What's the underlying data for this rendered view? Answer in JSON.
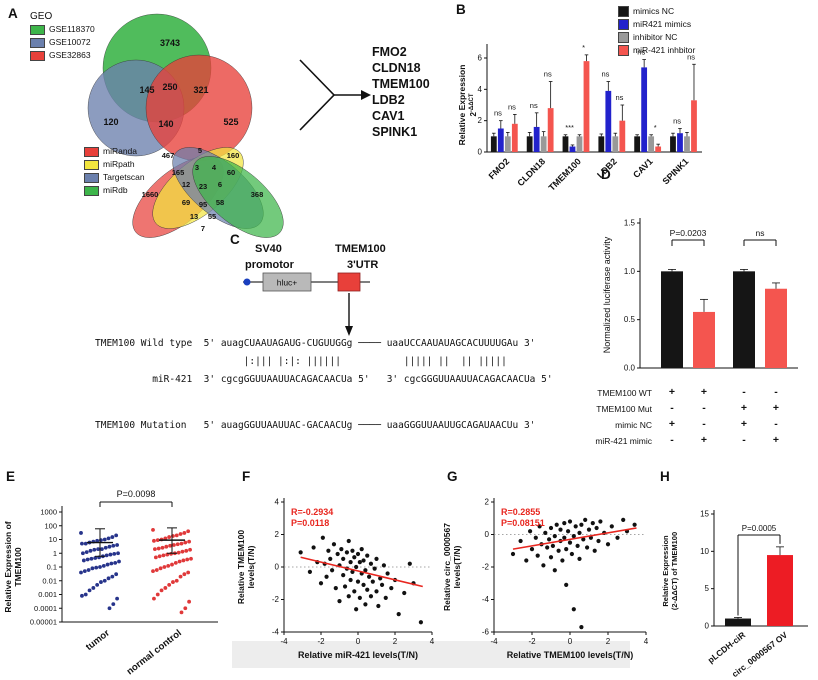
{
  "panels": {
    "A": {
      "label": "A",
      "geo": {
        "title": "GEO",
        "legend": [
          {
            "label": "GSE118370",
            "color": "#3db54a"
          },
          {
            "label": "GSE10072",
            "color": "#6b80ad"
          },
          {
            "label": "GSE32863",
            "color": "#e8403a"
          }
        ]
      },
      "venn3_counts": [
        "3743",
        "145",
        "250",
        "321",
        "120",
        "140",
        "525"
      ],
      "mirna_legend": [
        {
          "label": "miRanda",
          "color": "#e8403a"
        },
        {
          "label": "miRpath",
          "color": "#f2e53e"
        },
        {
          "label": "Targetscan",
          "color": "#6b80ad"
        },
        {
          "label": "miRdb",
          "color": "#3db54a"
        }
      ],
      "venn4_counts": [
        "467",
        "5",
        "160",
        "1660",
        "165",
        "3",
        "4",
        "60",
        "368",
        "12",
        "23",
        "6",
        "69",
        "95",
        "58",
        "13",
        "55",
        "7"
      ],
      "genes": [
        "FMO2",
        "CLDN18",
        "TMEM100",
        "LDB2",
        "CAV1",
        "SPINK1"
      ]
    },
    "B": {
      "label": "B"
    },
    "C": {
      "label": "C",
      "construct": {
        "promoter_top": "SV40",
        "promoter_bottom": "promotor",
        "utr_top": "TMEM100",
        "utr_bottom": "3'UTR",
        "reporter": "hluc+"
      },
      "sequence_lines": [
        "TMEM100 Wild type  5' auagCUAAUAGAUG-CUGUUGGg ──── uaaUCCAAUAUAGCACUUUUGAu 3'",
        "                          |:||| |:|: ||||||           ||||| ||  || |||||",
        "          miR-421  3' cgcgGGUUAAUUACAGACAACUa 5'   3' cgcGGGUUAAUUACAGACAACUa 5'",
        "TMEM100 Mutation   5' auagGGUUAAUUAC-GACAACUg ──── uaaGGGUUAAUUGCAGAUAACUu 3'"
      ]
    },
    "D": {
      "label": "D"
    },
    "E": {
      "label": "E"
    },
    "F": {
      "label": "F"
    },
    "G": {
      "label": "G"
    },
    "H": {
      "label": "H"
    }
  },
  "chart_data": [
    {
      "panel": "B",
      "type": "bar",
      "categories": [
        "FMO2",
        "CLDN18",
        "TMEM100",
        "LDB2",
        "CAV1",
        "SPINK1"
      ],
      "series": [
        {
          "name": "mimics NC",
          "color": "#151515",
          "values": [
            1.0,
            1.0,
            1.0,
            1.0,
            1.0,
            1.0
          ],
          "errors": [
            0.2,
            0.25,
            0.1,
            0.15,
            0.1,
            0.2
          ]
        },
        {
          "name": "miR421 mimics",
          "color": "#2222cc",
          "values": [
            1.5,
            1.6,
            0.35,
            3.9,
            5.4,
            1.2
          ],
          "errors": [
            0.5,
            0.9,
            0.1,
            0.6,
            0.5,
            0.3
          ]
        },
        {
          "name": "inhibitor NC",
          "color": "#999999",
          "values": [
            1.0,
            1.0,
            1.0,
            1.0,
            1.0,
            1.0
          ],
          "errors": [
            0.25,
            0.3,
            0.1,
            0.2,
            0.1,
            0.25
          ]
        },
        {
          "name": "miR-421 inhbitor",
          "color": "#f4554f",
          "values": [
            1.8,
            2.8,
            5.8,
            2.0,
            0.35,
            3.3
          ],
          "errors": [
            0.6,
            1.7,
            0.4,
            1.0,
            0.15,
            2.3
          ]
        }
      ],
      "ylabel_line1": "Relative Expression",
      "ylabel_line2": "2-ΔΔCT",
      "ylim": [
        0,
        6
      ],
      "yticks": [
        0,
        2,
        4,
        6
      ],
      "sig": [
        {
          "cat": "FMO2",
          "labels": [
            "ns",
            "ns"
          ]
        },
        {
          "cat": "CLDN18",
          "labels": [
            "ns",
            "ns"
          ]
        },
        {
          "cat": "TMEM100",
          "labels": [
            "***",
            "*"
          ]
        },
        {
          "cat": "LDB2",
          "labels": [
            "ns",
            "ns"
          ]
        },
        {
          "cat": "CAV1",
          "labels": [
            "ns",
            "*"
          ]
        },
        {
          "cat": "SPINK1",
          "labels": [
            "ns",
            "ns"
          ]
        }
      ]
    },
    {
      "panel": "D",
      "type": "bar",
      "ylabel": "Normalized luciferase activity",
      "ylim": [
        0,
        1.5
      ],
      "yticks": [
        "0.0",
        "0.5",
        "1.0",
        "1.5"
      ],
      "values": [
        1.0,
        0.58,
        1.0,
        0.82
      ],
      "errors": [
        0.02,
        0.13,
        0.02,
        0.06
      ],
      "colors": [
        "#151515",
        "#f4554f",
        "#151515",
        "#f4554f"
      ],
      "comparisons": [
        {
          "a": 0,
          "b": 1,
          "label": "P=0.0203"
        },
        {
          "a": 2,
          "b": 3,
          "label": "ns"
        }
      ],
      "table_rows": [
        {
          "label": "TMEM100  WT",
          "cells": [
            "+",
            "+",
            "-",
            "-"
          ]
        },
        {
          "label": "TMEM100 Mut",
          "cells": [
            "-",
            "-",
            "+",
            "+"
          ]
        },
        {
          "label": "mimic NC",
          "cells": [
            "+",
            "-",
            "+",
            "-"
          ]
        },
        {
          "label": "miR-421 mimic",
          "cells": [
            "-",
            "+",
            "-",
            "+"
          ]
        }
      ]
    },
    {
      "panel": "E",
      "type": "scatter-column",
      "pvalue": "P=0.0098",
      "ylabel_line1": "Relative Expression of",
      "ylabel_line2": "TMEM100",
      "yticks": [
        "1000",
        "100",
        "10",
        "1",
        "0.1",
        "0.01",
        "0.001",
        "0.0001",
        "0.00001"
      ],
      "groups": [
        {
          "name": "tumor",
          "color": "#27348b",
          "mean": 6,
          "sd_hi": 60,
          "sd_lo": 0.6,
          "values": [
            30,
            20,
            15,
            12,
            10,
            9,
            8,
            7,
            6,
            5,
            5,
            4,
            3.5,
            3,
            2.5,
            2,
            2,
            1.8,
            1.5,
            1.2,
            1,
            1,
            0.9,
            0.8,
            0.7,
            0.6,
            0.5,
            0.45,
            0.4,
            0.35,
            0.3,
            0.25,
            0.2,
            0.18,
            0.15,
            0.12,
            0.1,
            0.09,
            0.08,
            0.06,
            0.05,
            0.04,
            0.03,
            0.02,
            0.015,
            0.01,
            0.008,
            0.005,
            0.003,
            0.002,
            0.001,
            0.0008,
            0.0005,
            0.0002,
            0.0001
          ]
        },
        {
          "name": "normal control",
          "color": "#e0393a",
          "mean": 9,
          "sd_hi": 70,
          "sd_lo": 1,
          "values": [
            50,
            40,
            30,
            25,
            20,
            18,
            15,
            12,
            10,
            9,
            8,
            7,
            6,
            5,
            4.5,
            4,
            3.5,
            3,
            2.5,
            2.2,
            2,
            1.8,
            1.5,
            1.3,
            1.1,
            1,
            0.9,
            0.8,
            0.7,
            0.6,
            0.5,
            0.4,
            0.35,
            0.3,
            0.25,
            0.2,
            0.15,
            0.12,
            0.1,
            0.08,
            0.06,
            0.05,
            0.04,
            0.03,
            0.02,
            0.01,
            0.008,
            0.005,
            0.003,
            0.002,
            0.001,
            0.0005,
            0.0003,
            0.0001,
            5e-05
          ]
        }
      ]
    },
    {
      "panel": "F",
      "type": "scatter",
      "r_label": "R=-0.2934",
      "p_label": "P=0.0118",
      "xlabel": "Relative miR-421 levels(T/N)",
      "ylabel_line1": "Relative TMEM100",
      "ylabel_line2": "levels(T/N)",
      "xlim": [
        -4,
        4
      ],
      "ylim": [
        -4,
        4
      ],
      "xticks": [
        -4,
        -2,
        0,
        2,
        4
      ],
      "yticks": [
        4,
        2,
        0,
        -2,
        -4
      ],
      "trend": {
        "x1": -3.1,
        "y1": 0.6,
        "x2": 3.5,
        "y2": -1.2
      },
      "points": [
        [
          -3.1,
          0.9
        ],
        [
          -2.6,
          -0.3
        ],
        [
          -2.4,
          1.2
        ],
        [
          -2.2,
          0.3
        ],
        [
          -2.0,
          -1.0
        ],
        [
          -1.9,
          1.8
        ],
        [
          -1.8,
          0.2
        ],
        [
          -1.7,
          -0.6
        ],
        [
          -1.6,
          1.0
        ],
        [
          -1.5,
          0.5
        ],
        [
          -1.4,
          -0.2
        ],
        [
          -1.3,
          1.4
        ],
        [
          -1.2,
          -1.3
        ],
        [
          -1.1,
          0.8
        ],
        [
          -1.0,
          0.1
        ],
        [
          -1.0,
          -2.1
        ],
        [
          -0.9,
          1.1
        ],
        [
          -0.8,
          -0.5
        ],
        [
          -0.8,
          0.5
        ],
        [
          -0.7,
          -1.2
        ],
        [
          -0.6,
          0.9
        ],
        [
          -0.6,
          -0.1
        ],
        [
          -0.5,
          1.6
        ],
        [
          -0.5,
          -1.8
        ],
        [
          -0.4,
          0.3
        ],
        [
          -0.4,
          -0.8
        ],
        [
          -0.3,
          1.0
        ],
        [
          -0.3,
          -0.3
        ],
        [
          -0.2,
          0.6
        ],
        [
          -0.2,
          -1.5
        ],
        [
          -0.1,
          0.0
        ],
        [
          -0.1,
          -2.6
        ],
        [
          0.0,
          0.8
        ],
        [
          0.0,
          -0.9
        ],
        [
          0.1,
          0.3
        ],
        [
          0.1,
          -1.9
        ],
        [
          0.2,
          -0.4
        ],
        [
          0.2,
          1.1
        ],
        [
          0.3,
          -1.1
        ],
        [
          0.3,
          0.4
        ],
        [
          0.4,
          -0.2
        ],
        [
          0.4,
          -2.3
        ],
        [
          0.5,
          0.7
        ],
        [
          0.5,
          -1.4
        ],
        [
          0.6,
          -0.6
        ],
        [
          0.7,
          0.2
        ],
        [
          0.7,
          -1.8
        ],
        [
          0.8,
          -0.9
        ],
        [
          0.9,
          -0.1
        ],
        [
          1.0,
          -1.5
        ],
        [
          1.0,
          0.5
        ],
        [
          1.1,
          -2.4
        ],
        [
          1.2,
          -0.7
        ],
        [
          1.3,
          -1.1
        ],
        [
          1.4,
          0.1
        ],
        [
          1.5,
          -1.9
        ],
        [
          1.6,
          -0.4
        ],
        [
          1.8,
          -1.3
        ],
        [
          2.0,
          -0.8
        ],
        [
          2.2,
          -2.9
        ],
        [
          2.5,
          -1.6
        ],
        [
          2.8,
          0.2
        ],
        [
          3.0,
          -1.0
        ],
        [
          3.4,
          -3.4
        ]
      ]
    },
    {
      "panel": "G",
      "type": "scatter",
      "r_label": "R=0.2855",
      "p_label": "P=0.08151",
      "xlabel": "Relative TMEM100 levels(T/N)",
      "ylabel_line1": "Relative circ_0000567",
      "ylabel_line2": "levels(T/N)",
      "xlim": [
        -4,
        4
      ],
      "ylim": [
        -6,
        2
      ],
      "xticks": [
        -4,
        -2,
        0,
        2,
        4
      ],
      "yticks": [
        2,
        0,
        -2,
        -4,
        -6
      ],
      "trend": {
        "x1": -3.0,
        "y1": -0.9,
        "x2": 3.5,
        "y2": 0.4
      },
      "points": [
        [
          -3.0,
          -1.2
        ],
        [
          -2.6,
          -0.4
        ],
        [
          -2.3,
          -1.6
        ],
        [
          -2.1,
          0.2
        ],
        [
          -2.0,
          -0.9
        ],
        [
          -1.8,
          -0.2
        ],
        [
          -1.7,
          -1.3
        ],
        [
          -1.6,
          0.5
        ],
        [
          -1.5,
          -0.6
        ],
        [
          -1.4,
          -1.9
        ],
        [
          -1.3,
          0.1
        ],
        [
          -1.2,
          -0.8
        ],
        [
          -1.1,
          -0.3
        ],
        [
          -1.0,
          -1.4
        ],
        [
          -1.0,
          0.4
        ],
        [
          -0.9,
          -0.7
        ],
        [
          -0.8,
          -0.1
        ],
        [
          -0.8,
          -2.2
        ],
        [
          -0.7,
          0.6
        ],
        [
          -0.6,
          -1.0
        ],
        [
          -0.5,
          -0.4
        ],
        [
          -0.5,
          0.3
        ],
        [
          -0.4,
          -1.6
        ],
        [
          -0.3,
          -0.2
        ],
        [
          -0.3,
          0.7
        ],
        [
          -0.2,
          -0.9
        ],
        [
          -0.2,
          -3.1
        ],
        [
          -0.1,
          0.2
        ],
        [
          0.0,
          -0.5
        ],
        [
          0.0,
          0.8
        ],
        [
          0.1,
          -1.2
        ],
        [
          0.2,
          -0.1
        ],
        [
          0.2,
          -4.6
        ],
        [
          0.3,
          0.5
        ],
        [
          0.4,
          -0.7
        ],
        [
          0.5,
          0.1
        ],
        [
          0.5,
          -1.5
        ],
        [
          0.6,
          0.6
        ],
        [
          0.6,
          -5.7
        ],
        [
          0.7,
          -0.3
        ],
        [
          0.8,
          0.9
        ],
        [
          0.9,
          -0.8
        ],
        [
          1.0,
          0.3
        ],
        [
          1.1,
          -0.2
        ],
        [
          1.2,
          0.7
        ],
        [
          1.3,
          -1.0
        ],
        [
          1.4,
          0.4
        ],
        [
          1.5,
          -0.4
        ],
        [
          1.6,
          0.8
        ],
        [
          1.8,
          0.1
        ],
        [
          2.0,
          -0.6
        ],
        [
          2.2,
          0.5
        ],
        [
          2.5,
          -0.2
        ],
        [
          2.8,
          0.9
        ],
        [
          3.0,
          0.2
        ],
        [
          3.4,
          0.6
        ]
      ]
    },
    {
      "panel": "H",
      "type": "bar",
      "ylabel_line1": "Relative Expression",
      "ylabel_line2": "(2-ΔΔCT) of TMEM100",
      "pvalue": "P=0.0005",
      "categories": [
        "pLCDH-ciR",
        "circ_0000567 OV"
      ],
      "values": [
        1.0,
        9.5
      ],
      "errors": [
        0.15,
        1.1
      ],
      "colors": [
        "#151515",
        "#ed1c24"
      ],
      "ylim": [
        0,
        15
      ],
      "yticks": [
        0,
        5,
        10,
        15
      ]
    }
  ]
}
